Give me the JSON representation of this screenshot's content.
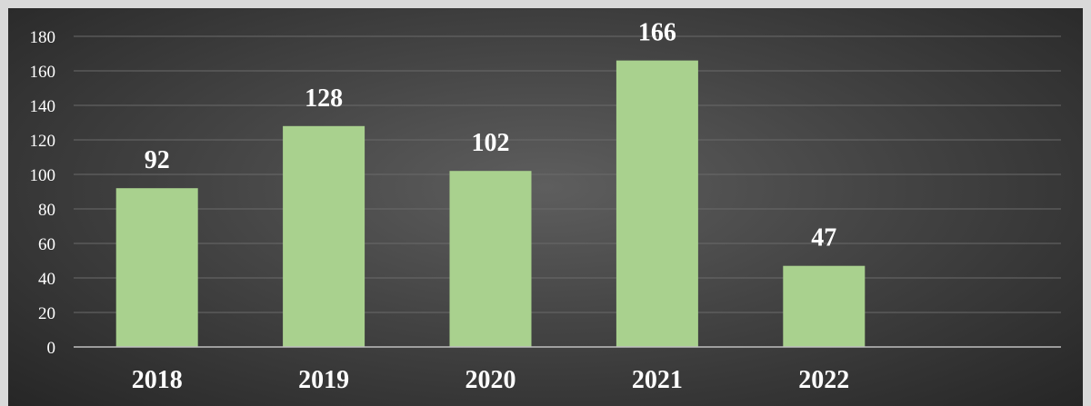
{
  "chart_data": {
    "type": "bar",
    "categories": [
      "2018",
      "2019",
      "2020",
      "2021",
      "2022"
    ],
    "values": [
      92,
      128,
      102,
      166,
      47
    ],
    "data_labels": [
      "92",
      "128",
      "102",
      "166",
      "47"
    ],
    "y_ticks": [
      "0",
      "20",
      "40",
      "60",
      "80",
      "100",
      "120",
      "140",
      "160",
      "180"
    ],
    "ylim": [
      0,
      180
    ],
    "grid": true,
    "legend": "none",
    "title": "",
    "xlabel": "",
    "ylabel": "",
    "bar_color": "#a9d18e",
    "background_color": "#3a3a3a"
  }
}
